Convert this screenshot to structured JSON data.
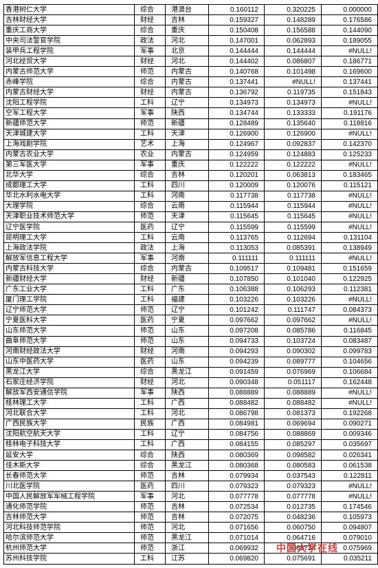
{
  "rows": [
    [
      "香港树仁大学",
      "综合",
      "港澳台",
      "0.160112",
      "0.320225",
      "0.000000"
    ],
    [
      "吉林财经大学",
      "财经",
      "吉林",
      "0.159327",
      "0.148289",
      "0.176586"
    ],
    [
      "重庆工商大学",
      "综合",
      "重庆",
      "0.150408",
      "0.156588",
      "0.144090"
    ],
    [
      "中央司法警官学院",
      "政法",
      "河北",
      "0.147001",
      "0.062893",
      "0.189055"
    ],
    [
      "装甲兵工程学院",
      "军事",
      "北京",
      "0.144444",
      "0.144444",
      "#NULL!"
    ],
    [
      "河北经贸大学",
      "财经",
      "河北",
      "0.144402",
      "0.086807",
      "0.186771"
    ],
    [
      "内蒙古师范大学",
      "师范",
      "内蒙古",
      "0.140768",
      "0.101498",
      "0.169600"
    ],
    [
      "赤峰学院",
      "综合",
      "内蒙古",
      "0.137441",
      "#NULL!",
      "0.137441"
    ],
    [
      "内蒙古财经大学",
      "财经",
      "内蒙古",
      "0.136792",
      "0.119735",
      "0.151843"
    ],
    [
      "沈阳工程学院",
      "工科",
      "辽宁",
      "0.134973",
      "0.134973",
      "#NULL!"
    ],
    [
      "空军工程大学",
      "军事",
      "陕西",
      "0.134744",
      "0.133333",
      "0.191176"
    ],
    [
      "新疆师范大学",
      "师范",
      "新疆",
      "0.128489",
      "0.135640",
      "0.118816"
    ],
    [
      "天津城建大学",
      "工科",
      "天津",
      "0.126900",
      "0.126900",
      "#NULL!"
    ],
    [
      "上海戏剧学院",
      "艺术",
      "上海",
      "0.124967",
      "0.092837",
      "0.142370"
    ],
    [
      "内蒙古农业大学",
      "农业",
      "内蒙古",
      "0.124959",
      "0.124883",
      "0.125233"
    ],
    [
      "第三军医大学",
      "军事",
      "重庆",
      "0.122222",
      "0.122222",
      "#NULL!"
    ],
    [
      "北华大学",
      "综合",
      "吉林",
      "0.120201",
      "0.063813",
      "0.183465"
    ],
    [
      "成都理工大学",
      "工科",
      "四川",
      "0.120009",
      "0.120076",
      "0.115121"
    ],
    [
      "华北水利水电大学",
      "工科",
      "河南",
      "0.117738",
      "0.117738",
      "#NULL!"
    ],
    [
      "大理学院",
      "综合",
      "云南",
      "0.115944",
      "0.115944",
      "#NULL!"
    ],
    [
      "天津职业技术师范大学",
      "师范",
      "天津",
      "0.115645",
      "0.115645",
      "#NULL!"
    ],
    [
      "辽宁医学院",
      "医药",
      "辽宁",
      "0.115599",
      "0.115599",
      "#NULL!"
    ],
    [
      "昆明理工大学",
      "工科",
      "云南",
      "0.113765",
      "0.112694",
      "0.131104"
    ],
    [
      "上海政法学院",
      "政法",
      "上海",
      "0.113053",
      "0.085391",
      "0.138949"
    ],
    [
      "解放军信息工程大学",
      "军事",
      "河南",
      "0.111111",
      "0.111111",
      "#NULL!"
    ],
    [
      "内蒙古科技大学",
      "综合",
      "内蒙古",
      "0.109517",
      "0.109481",
      "0.151659"
    ],
    [
      "新疆财经大学",
      "财经",
      "新疆",
      "0.107850",
      "0.101040",
      "0.122925"
    ],
    [
      "广东工业大学",
      "工科",
      "广东",
      "0.106388",
      "0.106293",
      "0.112381"
    ],
    [
      "厦门理工学院",
      "工科",
      "福建",
      "0.103226",
      "0.103226",
      "#NULL!"
    ],
    [
      "辽宁师范大学",
      "师范",
      "辽宁",
      "0.101242",
      "0.111747",
      "0.084373"
    ],
    [
      "宁夏医科大学",
      "医药",
      "宁夏",
      "0.097662",
      "0.097662",
      "#NULL!"
    ],
    [
      "山东师范大学",
      "师范",
      "山东",
      "0.097208",
      "0.085786",
      "0.116845"
    ],
    [
      "曲阜师范大学",
      "师范",
      "山东",
      "0.094733",
      "0.103724",
      "0.083487"
    ],
    [
      "河南财经政法大学",
      "财经",
      "河南",
      "0.094293",
      "0.090302",
      "0.099783"
    ],
    [
      "山东中医药大学",
      "医药",
      "山东",
      "0.094239",
      "0.089777",
      "0.104656"
    ],
    [
      "黑龙江大学",
      "综合",
      "黑龙江",
      "0.091459",
      "0.076969",
      "0.106684"
    ],
    [
      "石家庄经济学院",
      "财经",
      "河北",
      "0.090348",
      "0.051117",
      "0.162448"
    ],
    [
      "解放军西安通信学院",
      "军事",
      "陕西",
      "0.088889",
      "0.088889",
      "#NULL!"
    ],
    [
      "桂林理工大学",
      "工科",
      "广西",
      "0.088482",
      "0.088482",
      "#NULL!"
    ],
    [
      "河北联合大学",
      "工科",
      "河北",
      "0.086798",
      "0.081373",
      "0.192268"
    ],
    [
      "广西民族大学",
      "民族",
      "广西",
      "0.084981",
      "0.069694",
      "0.090271"
    ],
    [
      "沈阳航空航天大学",
      "工科",
      "辽宁",
      "0.084756",
      "0.088869",
      "0.009346"
    ],
    [
      "桂林电子科技大学",
      "工科",
      "广西",
      "0.084155",
      "0.085297",
      "0.035697"
    ],
    [
      "延安大学",
      "综合",
      "陕西",
      "0.080369",
      "0.098582",
      "0.026341"
    ],
    [
      "佳木斯大学",
      "综合",
      "黑龙江",
      "0.080368",
      "0.080583",
      "0.061538"
    ],
    [
      "长春师范大学",
      "师范",
      "吉林",
      "0.079934",
      "0.037543",
      "0.122811"
    ],
    [
      "川北医学院",
      "医药",
      "四川",
      "0.079323",
      "0.079323",
      "#NULL!"
    ],
    [
      "中国人民解放军军械工程学院",
      "军事",
      "河北",
      "0.077778",
      "0.077778",
      "#NULL!"
    ],
    [
      "通化师范学院",
      "师范",
      "吉林",
      "0.072534",
      "0.012735",
      "0.174546"
    ],
    [
      "吉林师范大学",
      "师范",
      "吉林",
      "0.072075",
      "0.048236",
      "0.105973"
    ],
    [
      "河北科技师范学院",
      "师范",
      "河北",
      "0.071656",
      "0.060750",
      "0.094807"
    ],
    [
      "哈尔滨师范大学",
      "师范",
      "黑龙江",
      "0.071014",
      "0.064716",
      "0.079010"
    ],
    [
      "杭州师范大学",
      "师范",
      "浙江",
      "0.069932",
      "0.065734",
      "0.075969"
    ],
    [
      "苏州科技学院",
      "工科",
      "江苏",
      "0.069820",
      "0.075691",
      "0.035211"
    ]
  ],
  "watermark": "中国大学在线"
}
